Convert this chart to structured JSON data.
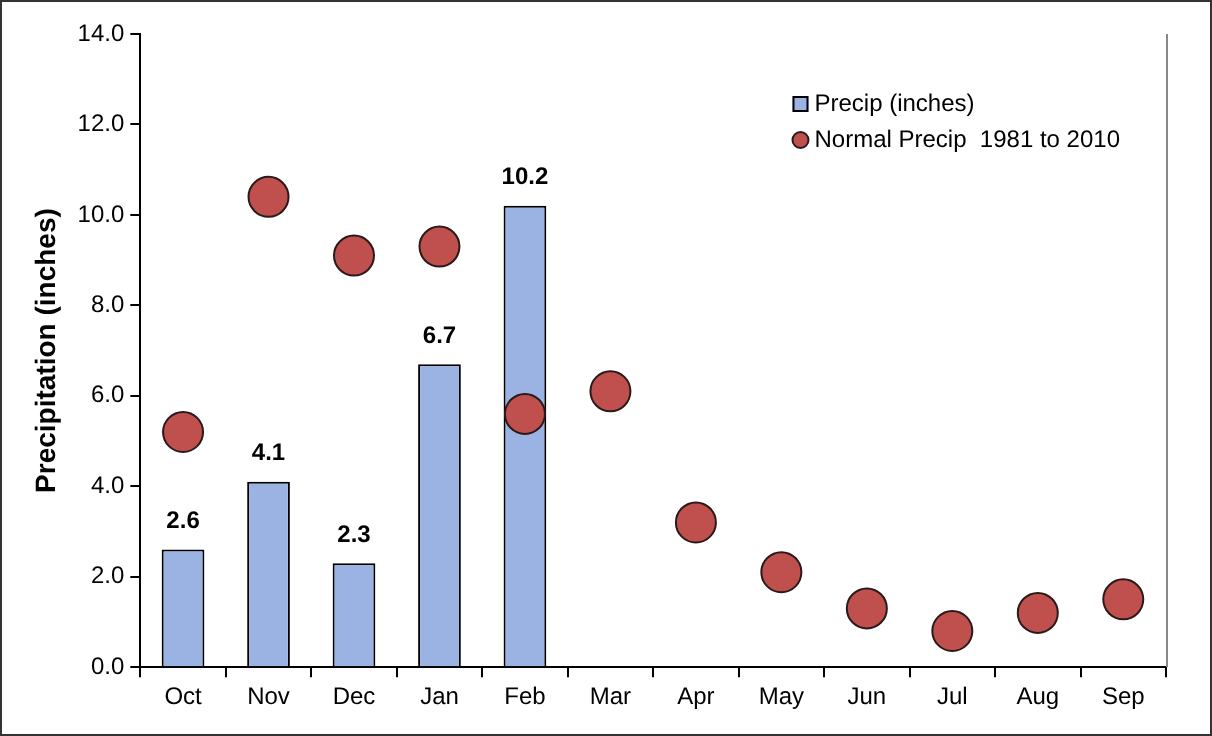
{
  "chart_data": {
    "type": "bar",
    "ylabel": "Precipitation (inches)",
    "categories": [
      "Oct",
      "Nov",
      "Dec",
      "Jan",
      "Feb",
      "Mar",
      "Apr",
      "May",
      "Jun",
      "Jul",
      "Aug",
      "Sep"
    ],
    "series": [
      {
        "name": "Precip (inches)",
        "color": "#9bb3e3",
        "values": [
          2.6,
          4.1,
          2.3,
          6.7,
          10.2,
          null,
          null,
          null,
          null,
          null,
          null,
          null
        ],
        "value_labels": [
          "2.6",
          "4.1",
          "2.3",
          "6.7",
          "10.2",
          null,
          null,
          null,
          null,
          null,
          null,
          null
        ]
      },
      {
        "name": "Normal Precip  1981 to 2010",
        "type": "scatter",
        "color": "#c0504d",
        "values": [
          5.2,
          10.4,
          9.1,
          9.3,
          5.6,
          6.1,
          3.2,
          2.1,
          1.3,
          0.8,
          1.2,
          1.5
        ]
      }
    ],
    "marker": "circle",
    "grid": false,
    "legend": "top right",
    "ylim": [
      0,
      14
    ],
    "yticks": [
      {
        "value": 0,
        "label": "0.0"
      },
      {
        "value": 2,
        "label": "2.0"
      },
      {
        "value": 4,
        "label": "4.0"
      },
      {
        "value": 6,
        "label": "6.0"
      },
      {
        "value": 8,
        "label": "8.0"
      },
      {
        "value": 10,
        "label": "10.0"
      },
      {
        "value": 12,
        "label": "12.0"
      },
      {
        "value": 14,
        "label": "14.0"
      }
    ]
  }
}
